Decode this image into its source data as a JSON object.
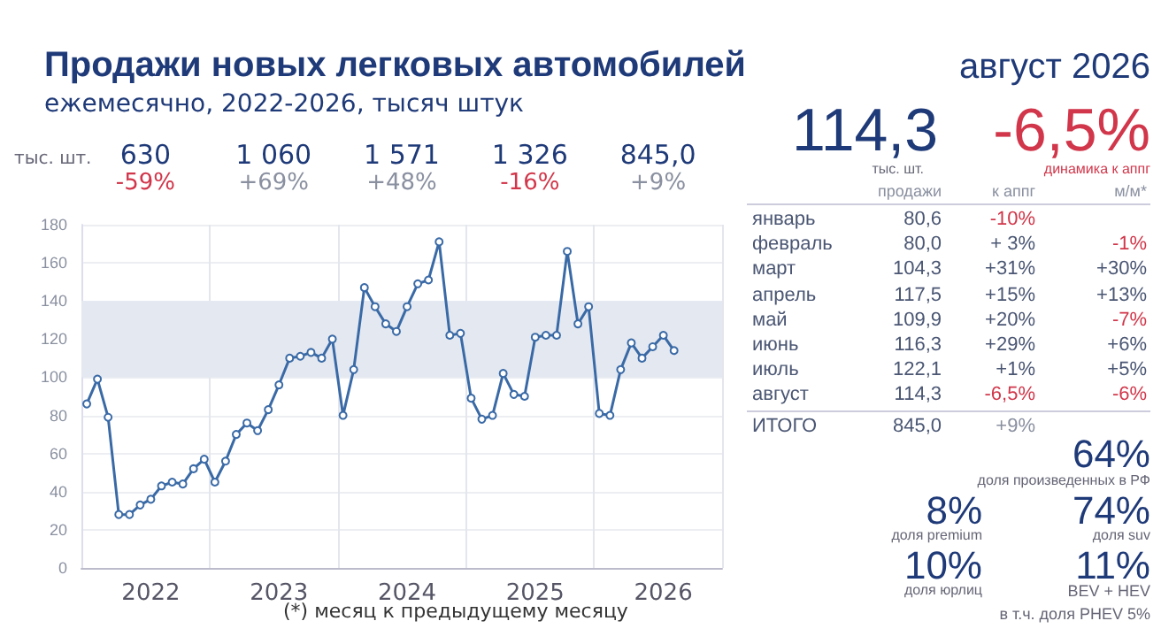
{
  "chart_data": [
    {
      "type": "line",
      "title": "Продажи новых легковых автомобилей",
      "subtitle": "ежемесячно, 2022-2026, тысяч штук",
      "ylabel": "тыс. шт.",
      "categories": [
        null,
        null,
        null,
        null,
        null,
        null,
        "2022",
        null,
        null,
        null,
        null,
        null,
        null,
        null,
        null,
        null,
        null,
        null,
        "2023",
        null,
        null,
        null,
        null,
        null,
        null,
        null,
        null,
        null,
        null,
        null,
        "2024",
        null,
        null,
        null,
        null,
        null,
        null,
        null,
        null,
        null,
        null,
        null,
        "2025",
        null,
        null,
        null,
        null,
        null,
        null,
        null,
        null,
        null,
        null,
        null,
        "2026",
        null,
        null,
        null,
        null,
        null
      ],
      "values": [
        86,
        99,
        79,
        28,
        28,
        33,
        36,
        43,
        45,
        44,
        52,
        57,
        45,
        56,
        70,
        76,
        72,
        83,
        96,
        110,
        111,
        113,
        110,
        120,
        80,
        104,
        147,
        137,
        128,
        124,
        137,
        149,
        151,
        171,
        122,
        123,
        89,
        78,
        80,
        102,
        91,
        90,
        121,
        122,
        122,
        166,
        128,
        137,
        81,
        80,
        104,
        118,
        110,
        116,
        122,
        114,
        null,
        null,
        null,
        null
      ],
      "color": "#3a6aa6",
      "marker": "circle",
      "ylim": [
        0,
        180
      ],
      "yticks": [
        0,
        20,
        40,
        60,
        80,
        100,
        120,
        140,
        160,
        180
      ],
      "grid": true,
      "bands": [
        {
          "axis": "y",
          "from": 100,
          "to": 140,
          "color": "#e4e8f0"
        }
      ],
      "annotations": [
        "630",
        "-59%",
        "1 060",
        "+69%",
        "1 571",
        "+48%",
        "1 326",
        "-16%",
        "845,0",
        "+9%",
        "(*) месяц к предыдущему месяцу"
      ]
    },
    {
      "type": "other",
      "title": "август 2026",
      "categories": [
        "январь",
        "февраль",
        "март",
        "апрель",
        "май",
        "июнь",
        "июль",
        "август"
      ],
      "series": [
        {
          "name": "продажи",
          "values": [
            80.6,
            80.0,
            104.3,
            117.5,
            109.9,
            116.3,
            122.1,
            114.3
          ],
          "value_labels": [
            "80,6",
            "80,0",
            "104,3",
            "117,5",
            "109,9",
            "116,3",
            "122,1",
            "114,3"
          ]
        },
        {
          "name": "к аппг",
          "values": [
            -10,
            3,
            31,
            15,
            20,
            29,
            1,
            -6.5
          ],
          "value_labels": [
            "-10%",
            "+ 3%",
            "+31%",
            "+15%",
            "+20%",
            "+29%",
            "+1%",
            "-6,5%"
          ]
        },
        {
          "name": "м/м*",
          "values": [
            null,
            -1,
            30,
            13,
            -7,
            6,
            5,
            -6
          ],
          "value_labels": [
            null,
            "-1%",
            "+30%",
            "+13%",
            "-7%",
            "+6%",
            "+5%",
            "-6%"
          ]
        }
      ],
      "annotations": [
        "114,3",
        "тыс. шт.",
        "-6,5%",
        "динамика к аппг",
        "ИТОГО",
        "845,0",
        "+9%",
        "64%",
        "доля произведенных в РФ",
        "8%",
        "доля premium",
        "74%",
        "доля suv",
        "10%",
        "доля юрлиц",
        "11%",
        "BEV + HEV",
        "в т.ч. доля PHEV 5%"
      ]
    }
  ]
}
